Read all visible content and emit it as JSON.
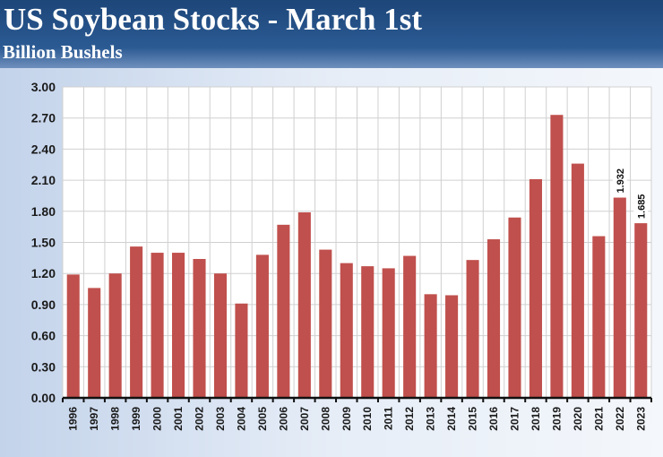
{
  "header": {
    "title": "US Soybean Stocks - March 1st",
    "subtitle": "Billion Bushels"
  },
  "chart_data": {
    "type": "bar",
    "title": "US Soybean Stocks - March 1st",
    "ylabel": "Billion Bushels",
    "xlabel": "",
    "ylim": [
      0,
      3.0
    ],
    "yticks": [
      "0.00",
      "0.30",
      "0.60",
      "0.90",
      "1.20",
      "1.50",
      "1.80",
      "2.10",
      "2.40",
      "2.70",
      "3.00"
    ],
    "grid": true,
    "color": "#c0504d",
    "categories": [
      "1996",
      "1997",
      "1998",
      "1999",
      "2000",
      "2001",
      "2002",
      "2003",
      "2004",
      "2005",
      "2006",
      "2007",
      "2008",
      "2009",
      "2010",
      "2011",
      "2012",
      "2013",
      "2014",
      "2015",
      "2016",
      "2017",
      "2018",
      "2019",
      "2020",
      "2021",
      "2022",
      "2023"
    ],
    "values": [
      1.19,
      1.06,
      1.2,
      1.46,
      1.4,
      1.4,
      1.34,
      1.2,
      0.91,
      1.38,
      1.67,
      1.79,
      1.43,
      1.3,
      1.27,
      1.25,
      1.37,
      1.0,
      0.99,
      1.33,
      1.53,
      1.74,
      2.11,
      2.73,
      2.26,
      1.56,
      1.932,
      1.685
    ],
    "data_labels": {
      "2022": "1.932",
      "2023": "1.685"
    }
  }
}
